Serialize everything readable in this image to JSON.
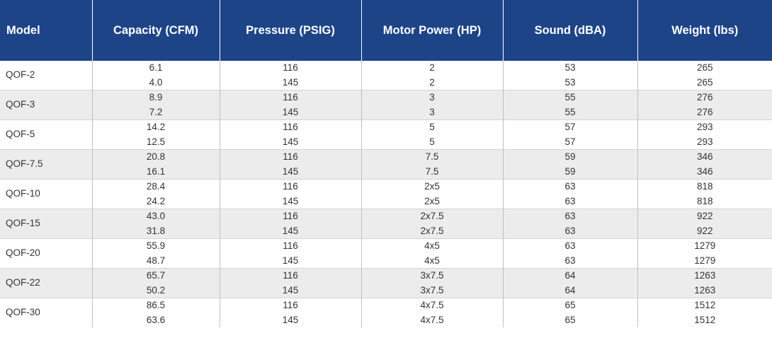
{
  "table": {
    "headers": [
      "Model",
      "Capacity (CFM)",
      "Pressure (PSIG)",
      "Motor Power (HP)",
      "Sound (dBA)",
      "Weight (lbs)"
    ],
    "groups": [
      {
        "model": "QOF-2",
        "rows": [
          {
            "capacity": "6.1",
            "pressure": "116",
            "motor": "2",
            "sound": "53",
            "weight": "265"
          },
          {
            "capacity": "4.0",
            "pressure": "145",
            "motor": "2",
            "sound": "53",
            "weight": "265"
          }
        ]
      },
      {
        "model": "QOF-3",
        "rows": [
          {
            "capacity": "8.9",
            "pressure": "116",
            "motor": "3",
            "sound": "55",
            "weight": "276"
          },
          {
            "capacity": "7.2",
            "pressure": "145",
            "motor": "3",
            "sound": "55",
            "weight": "276"
          }
        ]
      },
      {
        "model": "QOF-5",
        "rows": [
          {
            "capacity": "14.2",
            "pressure": "116",
            "motor": "5",
            "sound": "57",
            "weight": "293"
          },
          {
            "capacity": "12.5",
            "pressure": "145",
            "motor": "5",
            "sound": "57",
            "weight": "293"
          }
        ]
      },
      {
        "model": "QOF-7.5",
        "rows": [
          {
            "capacity": "20.8",
            "pressure": "116",
            "motor": "7.5",
            "sound": "59",
            "weight": "346"
          },
          {
            "capacity": "16.1",
            "pressure": "145",
            "motor": "7.5",
            "sound": "59",
            "weight": "346"
          }
        ]
      },
      {
        "model": "QOF-10",
        "rows": [
          {
            "capacity": "28.4",
            "pressure": "116",
            "motor": "2x5",
            "sound": "63",
            "weight": "818"
          },
          {
            "capacity": "24.2",
            "pressure": "145",
            "motor": "2x5",
            "sound": "63",
            "weight": "818"
          }
        ]
      },
      {
        "model": "QOF-15",
        "rows": [
          {
            "capacity": "43.0",
            "pressure": "116",
            "motor": "2x7.5",
            "sound": "63",
            "weight": "922"
          },
          {
            "capacity": "31.8",
            "pressure": "145",
            "motor": "2x7.5",
            "sound": "63",
            "weight": "922"
          }
        ]
      },
      {
        "model": "QOF-20",
        "rows": [
          {
            "capacity": "55.9",
            "pressure": "116",
            "motor": "4x5",
            "sound": "63",
            "weight": "1279"
          },
          {
            "capacity": "48.7",
            "pressure": "145",
            "motor": "4x5",
            "sound": "63",
            "weight": "1279"
          }
        ]
      },
      {
        "model": "QOF-22",
        "rows": [
          {
            "capacity": "65.7",
            "pressure": "116",
            "motor": "3x7.5",
            "sound": "64",
            "weight": "1263"
          },
          {
            "capacity": "50.2",
            "pressure": "145",
            "motor": "3x7.5",
            "sound": "64",
            "weight": "1263"
          }
        ]
      },
      {
        "model": "QOF-30",
        "rows": [
          {
            "capacity": "86.5",
            "pressure": "116",
            "motor": "4x7.5",
            "sound": "65",
            "weight": "1512"
          },
          {
            "capacity": "63.6",
            "pressure": "145",
            "motor": "4x7.5",
            "sound": "65",
            "weight": "1512"
          }
        ]
      }
    ]
  },
  "colors": {
    "header_background": "#1e4488",
    "header_text": "#ffffff",
    "row_shade": "#ececec",
    "body_text": "#333333"
  }
}
